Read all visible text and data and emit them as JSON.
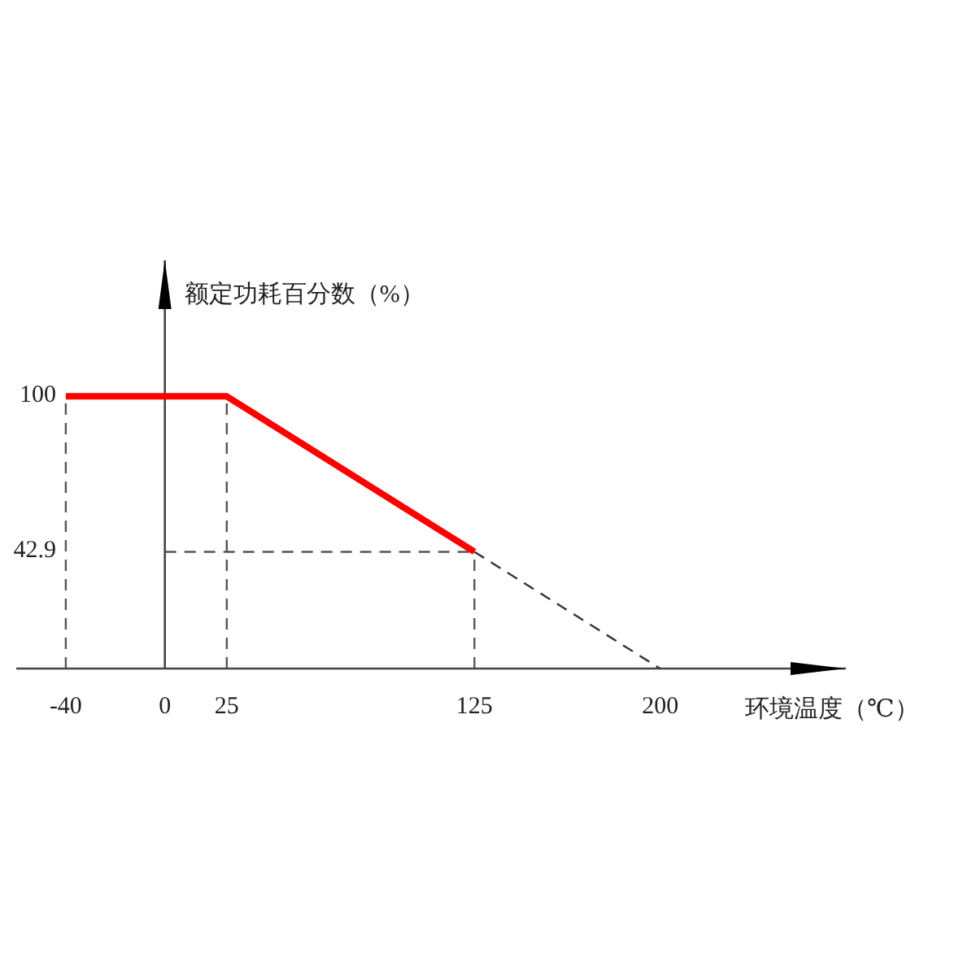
{
  "chart_data": {
    "type": "line",
    "xlabel": "环境温度（℃）",
    "ylabel": "额定功耗百分数（%）",
    "xlim": [
      -60,
      275
    ],
    "ylim": [
      0,
      150
    ],
    "xticks": [
      -40,
      0,
      25,
      125,
      200
    ],
    "yticks": [
      42.9,
      100
    ],
    "marker": "none",
    "series": [
      {
        "type": "line",
        "color": "#ff0000",
        "line_style": "solid",
        "x": [
          -40,
          25,
          125
        ],
        "values": [
          100,
          100,
          42.9
        ]
      },
      {
        "type": "line",
        "color": "#333333",
        "line_style": "dashed",
        "x": [
          125,
          200
        ],
        "values": [
          42.9,
          0
        ]
      }
    ],
    "ref_lines": [
      {
        "axis": "x",
        "value": -40,
        "line_style": "dashed",
        "color": "#555555"
      },
      {
        "axis": "x",
        "value": 25,
        "line_style": "dashed",
        "color": "#555555"
      },
      {
        "axis": "x",
        "value": 125,
        "line_style": "dashed",
        "color": "#555555"
      },
      {
        "axis": "y",
        "value": 42.9,
        "line_style": "dashed",
        "color": "#555555"
      }
    ]
  }
}
